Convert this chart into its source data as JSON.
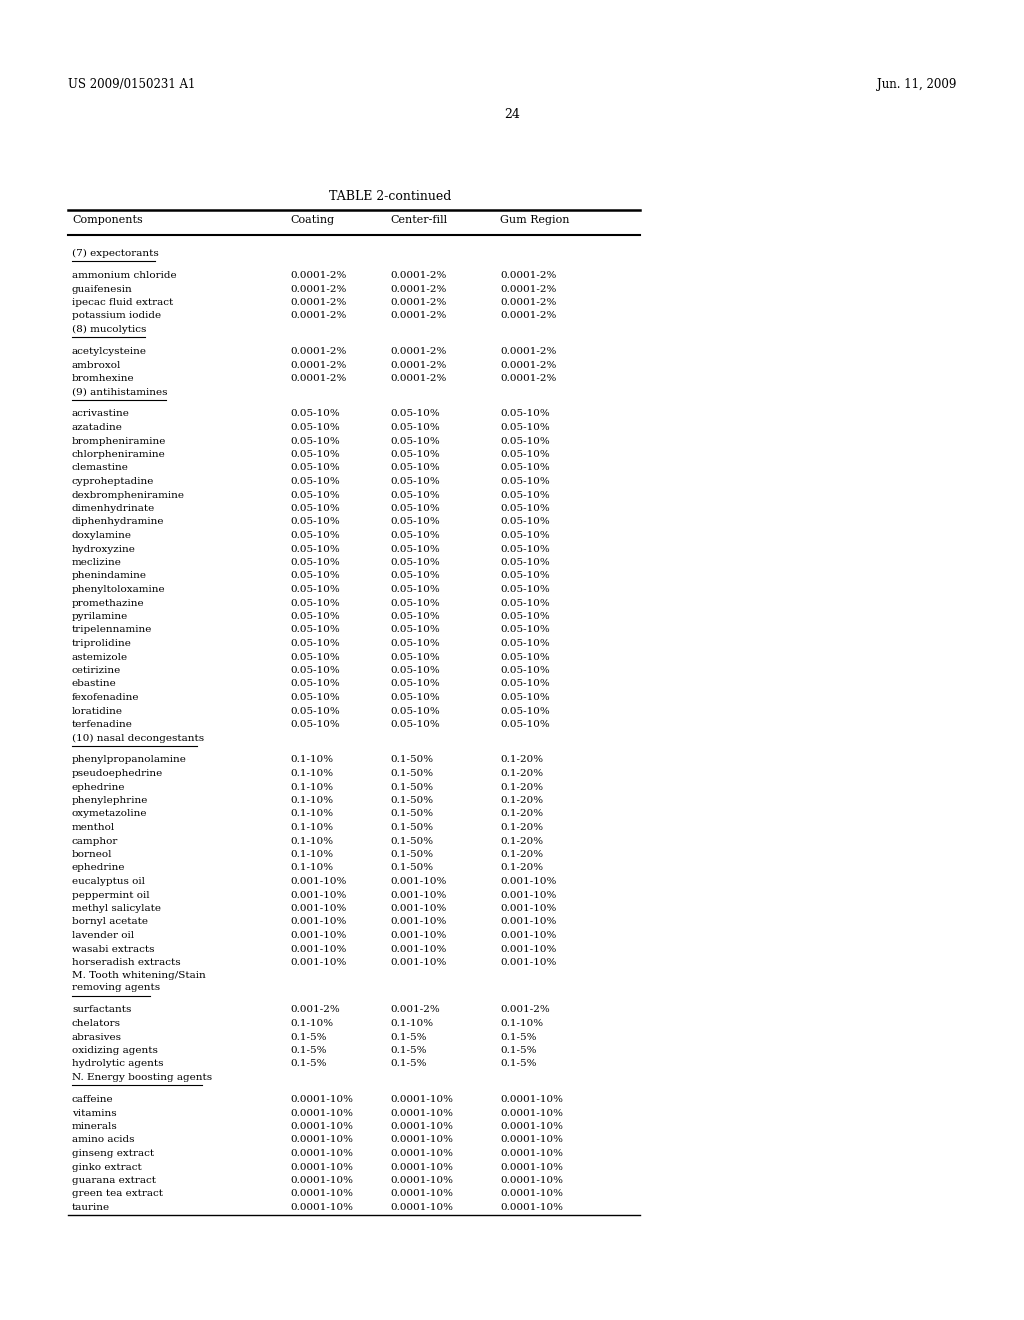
{
  "header_left": "US 2009/0150231 A1",
  "header_right": "Jun. 11, 2009",
  "page_number": "24",
  "table_title": "TABLE 2-continued",
  "col_headers": [
    "Components",
    "Coating",
    "Center-fill",
    "Gum Region"
  ],
  "sections": [
    {
      "section_header": "(7) expectorants",
      "rows": [
        [
          "ammonium chloride",
          "0.0001-2%",
          "0.0001-2%",
          "0.0001-2%"
        ],
        [
          "guaifenesin",
          "0.0001-2%",
          "0.0001-2%",
          "0.0001-2%"
        ],
        [
          "ipecac fluid extract",
          "0.0001-2%",
          "0.0001-2%",
          "0.0001-2%"
        ],
        [
          "potassium iodide",
          "0.0001-2%",
          "0.0001-2%",
          "0.0001-2%"
        ]
      ]
    },
    {
      "section_header": "(8) mucolytics",
      "rows": [
        [
          "acetylcysteine",
          "0.0001-2%",
          "0.0001-2%",
          "0.0001-2%"
        ],
        [
          "ambroxol",
          "0.0001-2%",
          "0.0001-2%",
          "0.0001-2%"
        ],
        [
          "bromhexine",
          "0.0001-2%",
          "0.0001-2%",
          "0.0001-2%"
        ]
      ]
    },
    {
      "section_header": "(9) antihistamines",
      "rows": [
        [
          "acrivastine",
          "0.05-10%",
          "0.05-10%",
          "0.05-10%"
        ],
        [
          "azatadine",
          "0.05-10%",
          "0.05-10%",
          "0.05-10%"
        ],
        [
          "brompheniramine",
          "0.05-10%",
          "0.05-10%",
          "0.05-10%"
        ],
        [
          "chlorpheniramine",
          "0.05-10%",
          "0.05-10%",
          "0.05-10%"
        ],
        [
          "clemastine",
          "0.05-10%",
          "0.05-10%",
          "0.05-10%"
        ],
        [
          "cyproheptadine",
          "0.05-10%",
          "0.05-10%",
          "0.05-10%"
        ],
        [
          "dexbrompheniramine",
          "0.05-10%",
          "0.05-10%",
          "0.05-10%"
        ],
        [
          "dimenhydrinate",
          "0.05-10%",
          "0.05-10%",
          "0.05-10%"
        ],
        [
          "diphenhydramine",
          "0.05-10%",
          "0.05-10%",
          "0.05-10%"
        ],
        [
          "doxylamine",
          "0.05-10%",
          "0.05-10%",
          "0.05-10%"
        ],
        [
          "hydroxyzine",
          "0.05-10%",
          "0.05-10%",
          "0.05-10%"
        ],
        [
          "meclizine",
          "0.05-10%",
          "0.05-10%",
          "0.05-10%"
        ],
        [
          "phenindamine",
          "0.05-10%",
          "0.05-10%",
          "0.05-10%"
        ],
        [
          "phenyltoloxamine",
          "0.05-10%",
          "0.05-10%",
          "0.05-10%"
        ],
        [
          "promethazine",
          "0.05-10%",
          "0.05-10%",
          "0.05-10%"
        ],
        [
          "pyrilamine",
          "0.05-10%",
          "0.05-10%",
          "0.05-10%"
        ],
        [
          "tripelennamine",
          "0.05-10%",
          "0.05-10%",
          "0.05-10%"
        ],
        [
          "triprolidine",
          "0.05-10%",
          "0.05-10%",
          "0.05-10%"
        ],
        [
          "astemizole",
          "0.05-10%",
          "0.05-10%",
          "0.05-10%"
        ],
        [
          "cetirizine",
          "0.05-10%",
          "0.05-10%",
          "0.05-10%"
        ],
        [
          "ebastine",
          "0.05-10%",
          "0.05-10%",
          "0.05-10%"
        ],
        [
          "fexofenadine",
          "0.05-10%",
          "0.05-10%",
          "0.05-10%"
        ],
        [
          "loratidine",
          "0.05-10%",
          "0.05-10%",
          "0.05-10%"
        ],
        [
          "terfenadine",
          "0.05-10%",
          "0.05-10%",
          "0.05-10%"
        ]
      ]
    },
    {
      "section_header": "(10) nasal decongestants",
      "rows": [
        [
          "phenylpropanolamine",
          "0.1-10%",
          "0.1-50%",
          "0.1-20%"
        ],
        [
          "pseudoephedrine",
          "0.1-10%",
          "0.1-50%",
          "0.1-20%"
        ],
        [
          "ephedrine",
          "0.1-10%",
          "0.1-50%",
          "0.1-20%"
        ],
        [
          "phenylephrine",
          "0.1-10%",
          "0.1-50%",
          "0.1-20%"
        ],
        [
          "oxymetazoline",
          "0.1-10%",
          "0.1-50%",
          "0.1-20%"
        ],
        [
          "menthol",
          "0.1-10%",
          "0.1-50%",
          "0.1-20%"
        ],
        [
          "camphor",
          "0.1-10%",
          "0.1-50%",
          "0.1-20%"
        ],
        [
          "borneol",
          "0.1-10%",
          "0.1-50%",
          "0.1-20%"
        ],
        [
          "ephedrine",
          "0.1-10%",
          "0.1-50%",
          "0.1-20%"
        ],
        [
          "eucalyptus oil",
          "0.001-10%",
          "0.001-10%",
          "0.001-10%"
        ],
        [
          "peppermint oil",
          "0.001-10%",
          "0.001-10%",
          "0.001-10%"
        ],
        [
          "methyl salicylate",
          "0.001-10%",
          "0.001-10%",
          "0.001-10%"
        ],
        [
          "bornyl acetate",
          "0.001-10%",
          "0.001-10%",
          "0.001-10%"
        ],
        [
          "lavender oil",
          "0.001-10%",
          "0.001-10%",
          "0.001-10%"
        ],
        [
          "wasabi extracts",
          "0.001-10%",
          "0.001-10%",
          "0.001-10%"
        ],
        [
          "horseradish extracts",
          "0.001-10%",
          "0.001-10%",
          "0.001-10%"
        ]
      ]
    },
    {
      "section_header": "M. Tooth whitening/Stain\nremoving agents",
      "rows": [
        [
          "surfactants",
          "0.001-2%",
          "0.001-2%",
          "0.001-2%"
        ],
        [
          "chelators",
          "0.1-10%",
          "0.1-10%",
          "0.1-10%"
        ],
        [
          "abrasives",
          "0.1-5%",
          "0.1-5%",
          "0.1-5%"
        ],
        [
          "oxidizing agents",
          "0.1-5%",
          "0.1-5%",
          "0.1-5%"
        ],
        [
          "hydrolytic agents",
          "0.1-5%",
          "0.1-5%",
          "0.1-5%"
        ]
      ]
    },
    {
      "section_header": "N. Energy boosting agents",
      "rows": [
        [
          "caffeine",
          "0.0001-10%",
          "0.0001-10%",
          "0.0001-10%"
        ],
        [
          "vitamins",
          "0.0001-10%",
          "0.0001-10%",
          "0.0001-10%"
        ],
        [
          "minerals",
          "0.0001-10%",
          "0.0001-10%",
          "0.0001-10%"
        ],
        [
          "amino acids",
          "0.0001-10%",
          "0.0001-10%",
          "0.0001-10%"
        ],
        [
          "ginseng extract",
          "0.0001-10%",
          "0.0001-10%",
          "0.0001-10%"
        ],
        [
          "ginko extract",
          "0.0001-10%",
          "0.0001-10%",
          "0.0001-10%"
        ],
        [
          "guarana extract",
          "0.0001-10%",
          "0.0001-10%",
          "0.0001-10%"
        ],
        [
          "green tea extract",
          "0.0001-10%",
          "0.0001-10%",
          "0.0001-10%"
        ],
        [
          "taurine",
          "0.0001-10%",
          "0.0001-10%",
          "0.0001-10%"
        ]
      ]
    }
  ]
}
